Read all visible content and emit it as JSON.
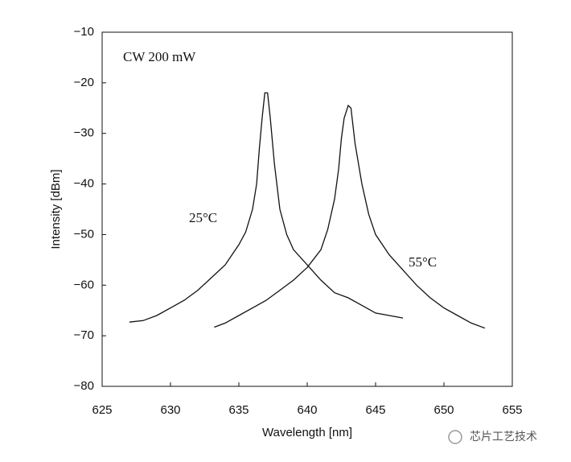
{
  "chart_data": {
    "type": "line",
    "x_label": "Wavelength [nm]",
    "y_label": "Intensity [dBm]",
    "annotations": [
      "CW 200 mW",
      "25°C",
      "55°C"
    ],
    "watermark": "芯片工艺技术",
    "xlim": [
      625,
      655
    ],
    "xticks": [
      625,
      630,
      635,
      640,
      645,
      650,
      655
    ],
    "ylim": [
      -80,
      -10
    ],
    "yticks": [
      {
        "value": -80,
        "label": "−80"
      },
      {
        "value": -70,
        "label": "−70"
      },
      {
        "value": -60,
        "label": "−60"
      },
      {
        "value": -50,
        "label": "−50"
      },
      {
        "value": -40,
        "label": "−40"
      },
      {
        "value": -30,
        "label": "−30"
      },
      {
        "value": -20,
        "label": "−20"
      },
      {
        "value": -10,
        "label": "−10"
      }
    ],
    "grid": false,
    "series": [
      {
        "name": "25°C",
        "color": "#111111",
        "x": [
          627,
          628,
          629,
          630,
          631,
          632,
          633,
          634,
          635,
          635.5,
          636,
          636.3,
          636.5,
          636.7,
          636.9,
          637.1,
          637.3,
          637.6,
          638,
          638.5,
          639,
          640,
          641,
          642,
          643,
          644,
          645,
          646,
          647
        ],
        "values": [
          -67.3,
          -67,
          -66,
          -64.5,
          -63,
          -61,
          -58.5,
          -56,
          -52,
          -49.5,
          -45,
          -40,
          -33,
          -27,
          -22,
          -22,
          -27,
          -36,
          -45,
          -50,
          -53,
          -56,
          -59,
          -61.5,
          -62.5,
          -64,
          -65.5,
          -66,
          -66.5
        ]
      },
      {
        "name": "55°C",
        "color": "#111111",
        "x": [
          633.2,
          634,
          635,
          636,
          637,
          638,
          639,
          640,
          641,
          641.5,
          642,
          642.3,
          642.5,
          642.7,
          643,
          643.2,
          643.5,
          644,
          644.5,
          645,
          646,
          647,
          648,
          649,
          650,
          651,
          652,
          653
        ],
        "values": [
          -68.3,
          -67.5,
          -66,
          -64.5,
          -63,
          -61,
          -59,
          -56.5,
          -53,
          -49,
          -43,
          -37,
          -31,
          -27,
          -24.5,
          -25,
          -32,
          -40,
          -46,
          -50,
          -54,
          -57,
          -60,
          -62.5,
          -64.5,
          -66,
          -67.5,
          -68.5
        ]
      }
    ]
  }
}
